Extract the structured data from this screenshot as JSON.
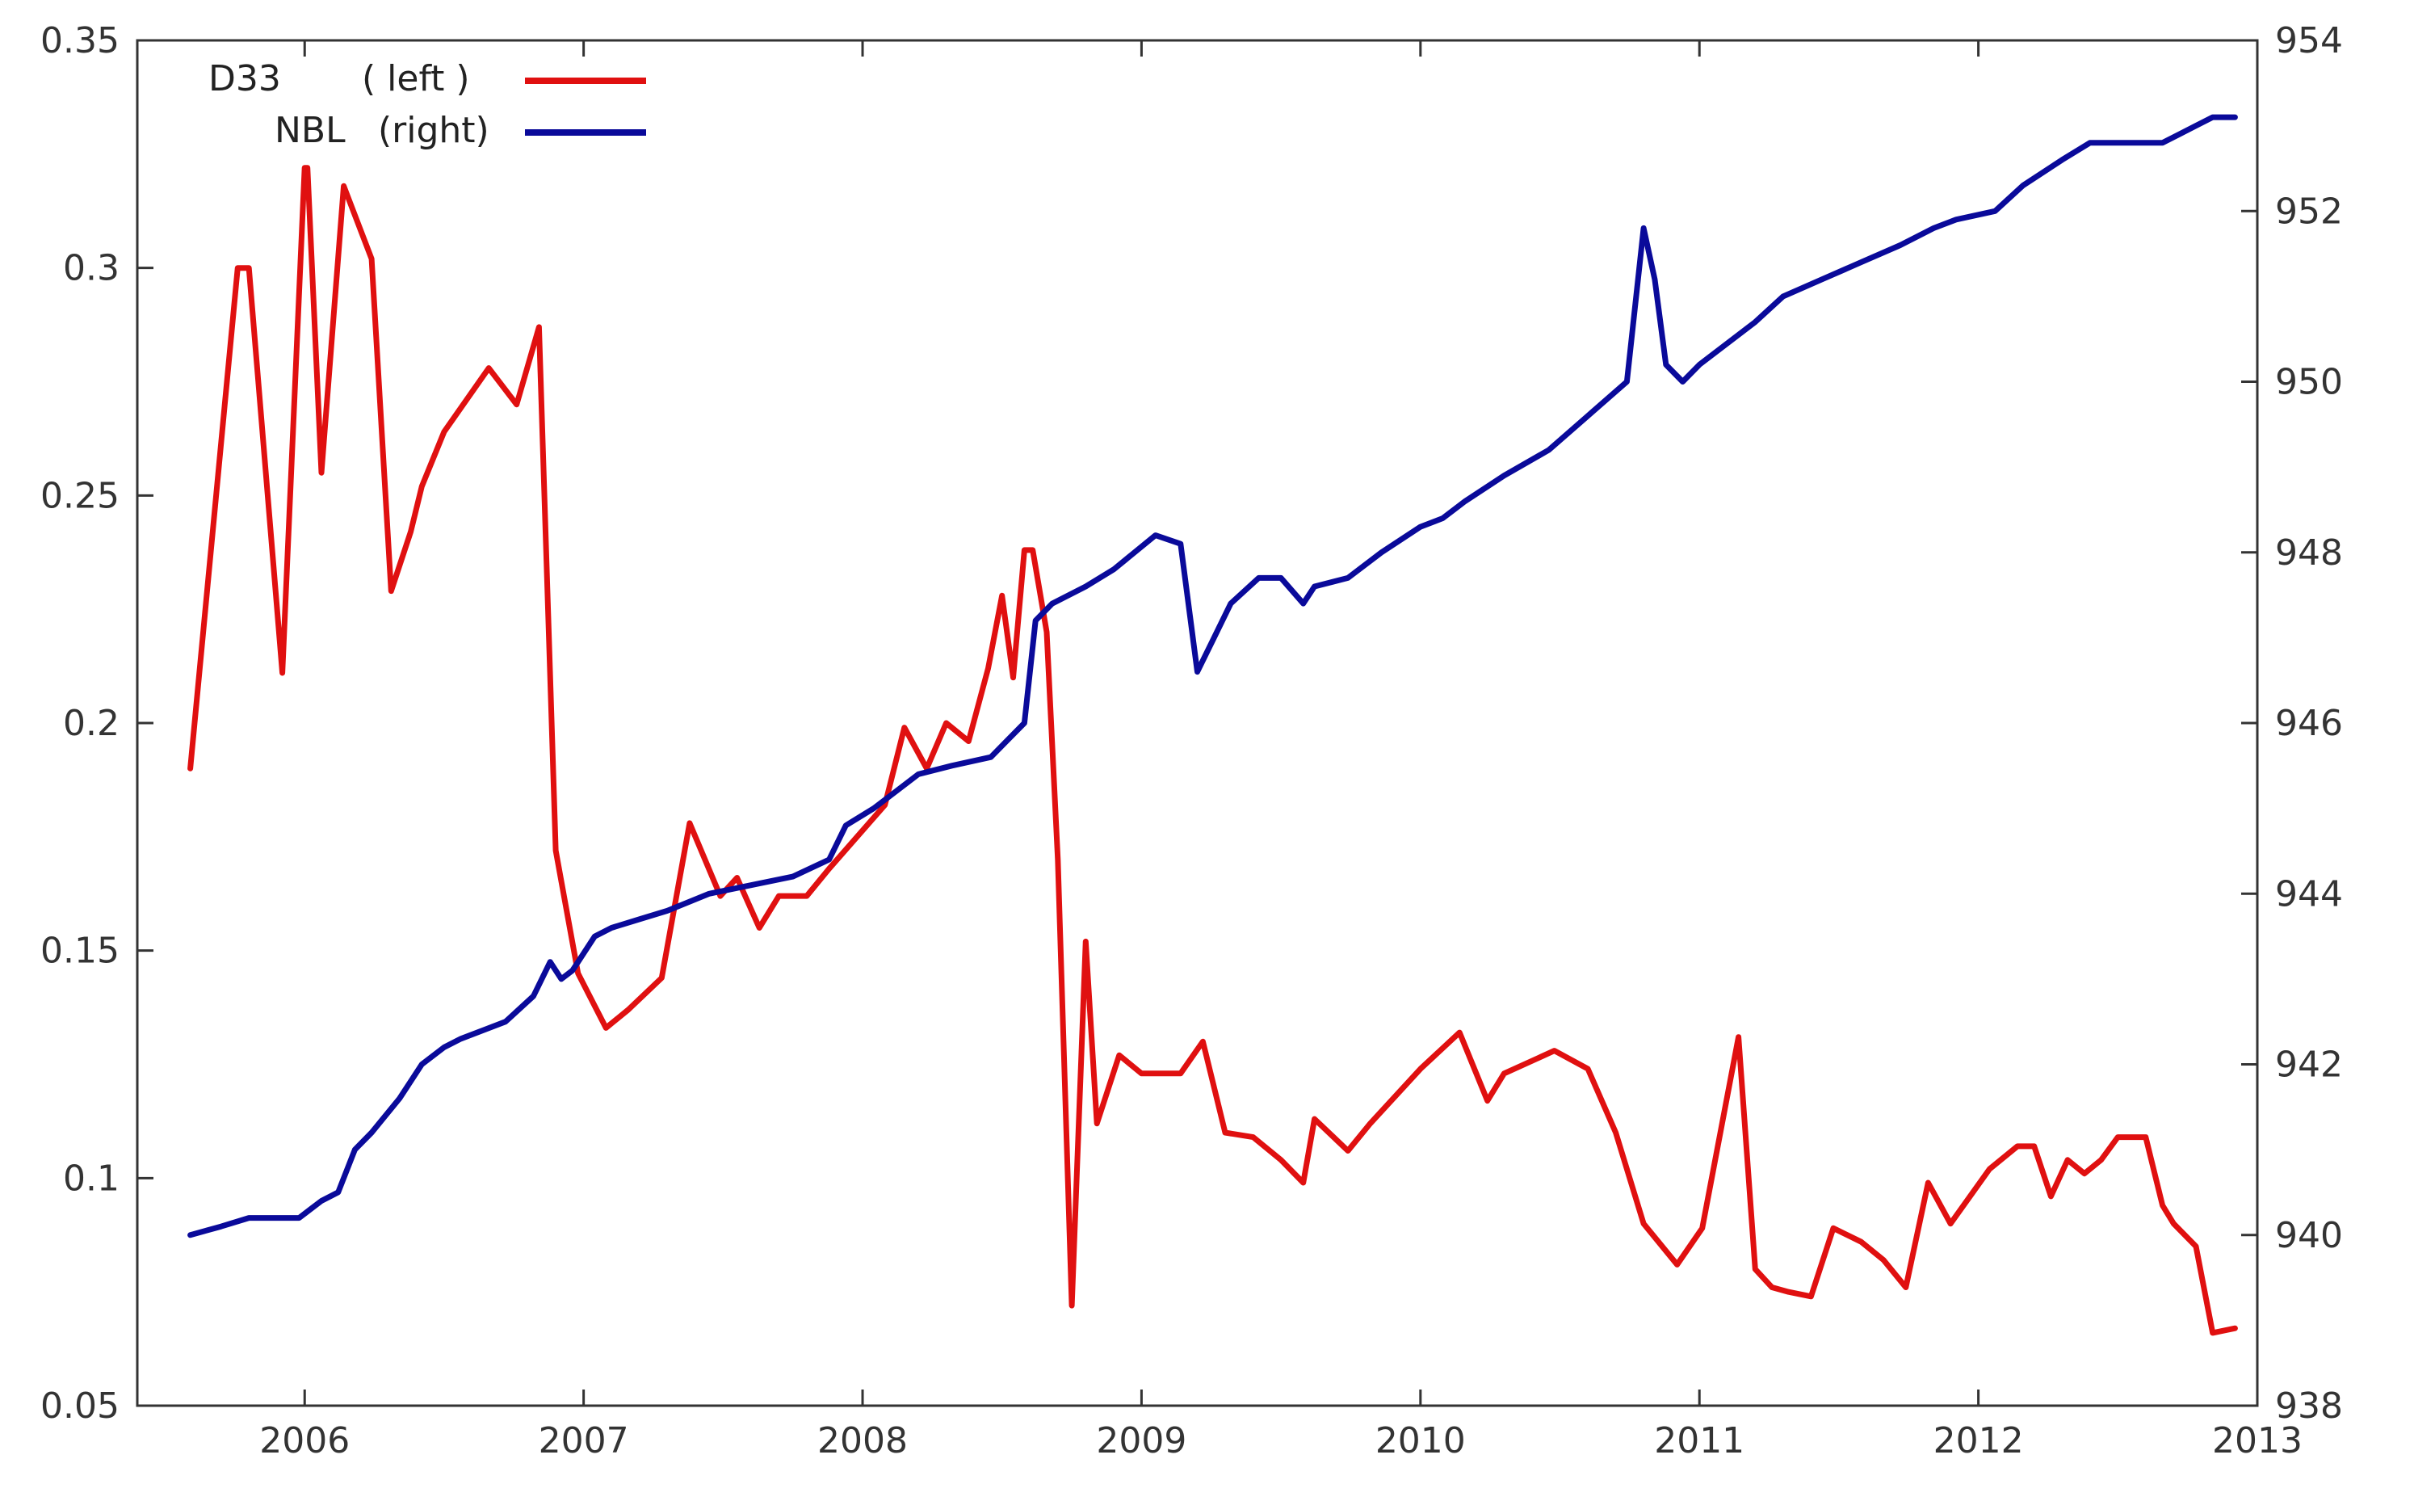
{
  "chart_data": {
    "type": "line",
    "title": "",
    "xlabel": "",
    "ylabel_left": "",
    "ylabel_right": "",
    "xlim": [
      2005.4,
      2013.0
    ],
    "ylim_left": [
      0.05,
      0.35
    ],
    "ylim_right": [
      938,
      954
    ],
    "x_ticks": [
      2006,
      2007,
      2008,
      2009,
      2010,
      2011,
      2012,
      2013
    ],
    "x_tick_labels": [
      "2006",
      "2007",
      "2008",
      "2009",
      "2010",
      "2011",
      "2012",
      "2013"
    ],
    "y_left_ticks": [
      0.05,
      0.1,
      0.15,
      0.2,
      0.25,
      0.3,
      0.35
    ],
    "y_left_tick_labels": [
      "0.05",
      "0.1",
      "0.15",
      "0.2",
      "0.25",
      "0.3",
      "0.35"
    ],
    "y_right_ticks": [
      938,
      940,
      942,
      944,
      946,
      948,
      950,
      952,
      954
    ],
    "y_right_tick_labels": [
      "938",
      "940",
      "942",
      "944",
      "946",
      "948",
      "950",
      "952",
      "954"
    ],
    "grid": false,
    "legend_placement": "top-left",
    "series": [
      {
        "name": "D33",
        "legend_label": "( left )",
        "axis": "left",
        "color": "#e01010",
        "x": [
          2005.59,
          2005.76,
          2005.8,
          2005.92,
          2006.0,
          2006.01,
          2006.06,
          2006.14,
          2006.24,
          2006.31,
          2006.38,
          2006.42,
          2006.5,
          2006.66,
          2006.76,
          2006.84,
          2006.9,
          2006.98,
          2007.08,
          2007.16,
          2007.28,
          2007.38,
          2007.49,
          2007.55,
          2007.63,
          2007.7,
          2007.8,
          2007.88,
          2008.08,
          2008.15,
          2008.23,
          2008.3,
          2008.38,
          2008.45,
          2008.5,
          2008.54,
          2008.58,
          2008.61,
          2008.66,
          2008.7,
          2008.75,
          2008.8,
          2008.84,
          2008.92,
          2009.0,
          2009.14,
          2009.22,
          2009.3,
          2009.4,
          2009.5,
          2009.58,
          2009.62,
          2009.74,
          2009.82,
          2010.0,
          2010.14,
          2010.24,
          2010.3,
          2010.48,
          2010.6,
          2010.7,
          2010.8,
          2010.92,
          2011.01,
          2011.14,
          2011.2,
          2011.26,
          2011.32,
          2011.4,
          2011.48,
          2011.58,
          2011.66,
          2011.74,
          2011.82,
          2011.9,
          2012.04,
          2012.14,
          2012.2,
          2012.26,
          2012.32,
          2012.38,
          2012.44,
          2012.5,
          2012.6,
          2012.66,
          2012.7,
          2012.78,
          2012.84,
          2012.92
        ],
        "y": [
          0.19,
          0.3,
          0.3,
          0.211,
          0.322,
          0.322,
          0.255,
          0.318,
          0.302,
          0.229,
          0.242,
          0.252,
          0.264,
          0.278,
          0.27,
          0.287,
          0.172,
          0.145,
          0.133,
          0.137,
          0.144,
          0.178,
          0.162,
          0.166,
          0.155,
          0.162,
          0.162,
          0.168,
          0.182,
          0.199,
          0.19,
          0.2,
          0.196,
          0.212,
          0.228,
          0.21,
          0.238,
          0.238,
          0.22,
          0.17,
          0.072,
          0.152,
          0.112,
          0.127,
          0.123,
          0.123,
          0.13,
          0.11,
          0.109,
          0.104,
          0.099,
          0.113,
          0.106,
          0.112,
          0.124,
          0.132,
          0.117,
          0.123,
          0.128,
          0.124,
          0.11,
          0.09,
          0.081,
          0.089,
          0.131,
          0.08,
          0.076,
          0.075,
          0.074,
          0.089,
          0.086,
          0.082,
          0.076,
          0.099,
          0.09,
          0.102,
          0.107,
          0.107,
          0.096,
          0.104,
          0.101,
          0.104,
          0.109,
          0.109,
          0.094,
          0.09,
          0.085,
          0.066,
          0.067
        ]
      },
      {
        "name": "NBL",
        "legend_label": "(right)",
        "axis": "right",
        "color": "#0a0a9a",
        "x": [
          2005.59,
          2005.7,
          2005.8,
          2005.86,
          2005.98,
          2006.06,
          2006.12,
          2006.18,
          2006.24,
          2006.34,
          2006.42,
          2006.5,
          2006.56,
          2006.72,
          2006.82,
          2006.88,
          2006.92,
          2006.96,
          2007.04,
          2007.1,
          2007.2,
          2007.3,
          2007.45,
          2007.6,
          2007.75,
          2007.88,
          2007.94,
          2008.04,
          2008.12,
          2008.2,
          2008.32,
          2008.46,
          2008.52,
          2008.58,
          2008.62,
          2008.68,
          2008.8,
          2008.9,
          2009.05,
          2009.14,
          2009.2,
          2009.26,
          2009.32,
          2009.42,
          2009.5,
          2009.58,
          2009.62,
          2009.74,
          2009.86,
          2010.0,
          2010.08,
          2010.16,
          2010.3,
          2010.46,
          2010.6,
          2010.74,
          2010.8,
          2010.84,
          2010.88,
          2010.94,
          2011.0,
          2011.2,
          2011.3,
          2011.44,
          2011.58,
          2011.72,
          2011.84,
          2011.92,
          2012.06,
          2012.16,
          2012.3,
          2012.4,
          2012.5,
          2012.66,
          2012.72,
          2012.78,
          2012.84,
          2012.92
        ],
        "y": [
          940.0,
          940.1,
          940.2,
          940.2,
          940.2,
          940.4,
          940.5,
          941.0,
          941.2,
          941.6,
          942.0,
          942.2,
          942.3,
          942.5,
          942.8,
          943.2,
          943.0,
          943.1,
          943.5,
          943.6,
          943.7,
          943.8,
          944.0,
          944.1,
          944.2,
          944.4,
          944.8,
          945.0,
          945.2,
          945.4,
          945.5,
          945.6,
          945.8,
          946.0,
          947.2,
          947.4,
          947.6,
          947.8,
          948.2,
          948.1,
          946.6,
          947.0,
          947.4,
          947.7,
          947.7,
          947.4,
          947.6,
          947.7,
          948.0,
          948.3,
          948.4,
          948.6,
          948.9,
          949.2,
          949.6,
          950.0,
          951.8,
          951.2,
          950.2,
          950.0,
          950.2,
          950.7,
          951.0,
          951.2,
          951.4,
          951.6,
          951.8,
          951.9,
          952.0,
          952.3,
          952.6,
          952.8,
          952.8,
          952.8,
          952.9,
          953.0,
          953.1,
          953.1
        ]
      }
    ]
  }
}
